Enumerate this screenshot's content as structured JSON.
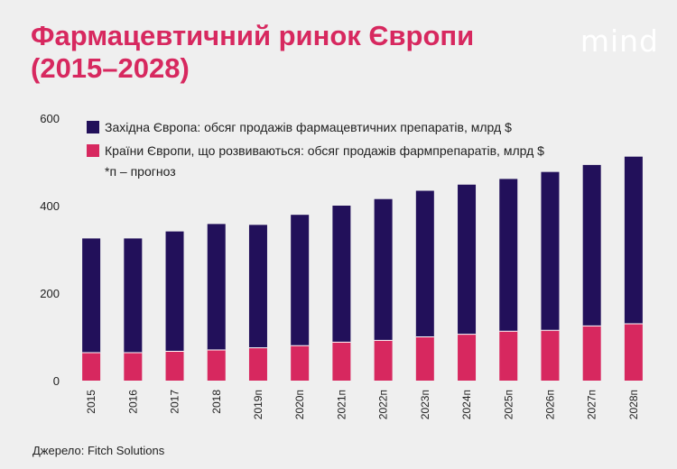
{
  "header": {
    "title": "Фармацевтичний ринок Європи (2015–2028)",
    "logo": "mind"
  },
  "footer": {
    "source": "Джерело: Fitch Solutions"
  },
  "colors": {
    "background": "#efefef",
    "western": "#22105a",
    "emerging": "#d7285f",
    "title": "#d7285f"
  },
  "chart_data": {
    "type": "bar",
    "stacked": true,
    "categories": [
      "2015",
      "2016",
      "2017",
      "2018",
      "2019п",
      "2020п",
      "2021п",
      "2022п",
      "2023п",
      "2024п",
      "2025п",
      "2026п",
      "2027п",
      "2028п"
    ],
    "series": [
      {
        "name": "Країни Європи, що розвиваються: обсяг продажів фармпрепаратів, млрд $",
        "color": "#d7285f",
        "values": [
          64,
          64,
          67,
          70,
          75,
          80,
          88,
          92,
          100,
          106,
          113,
          115,
          125,
          130
        ]
      },
      {
        "name": "Західна Європа: обсяг продажів фармацевтичних препаратів, млрд $",
        "color": "#22105a",
        "values": [
          261,
          261,
          274,
          288,
          281,
          299,
          312,
          323,
          334,
          342,
          348,
          362,
          368,
          382
        ]
      }
    ],
    "note": "*п – прогноз",
    "yticks": [
      0,
      200,
      400,
      600
    ],
    "ylim": [
      0,
      600
    ],
    "grid": false,
    "legend_position": "top-left"
  }
}
